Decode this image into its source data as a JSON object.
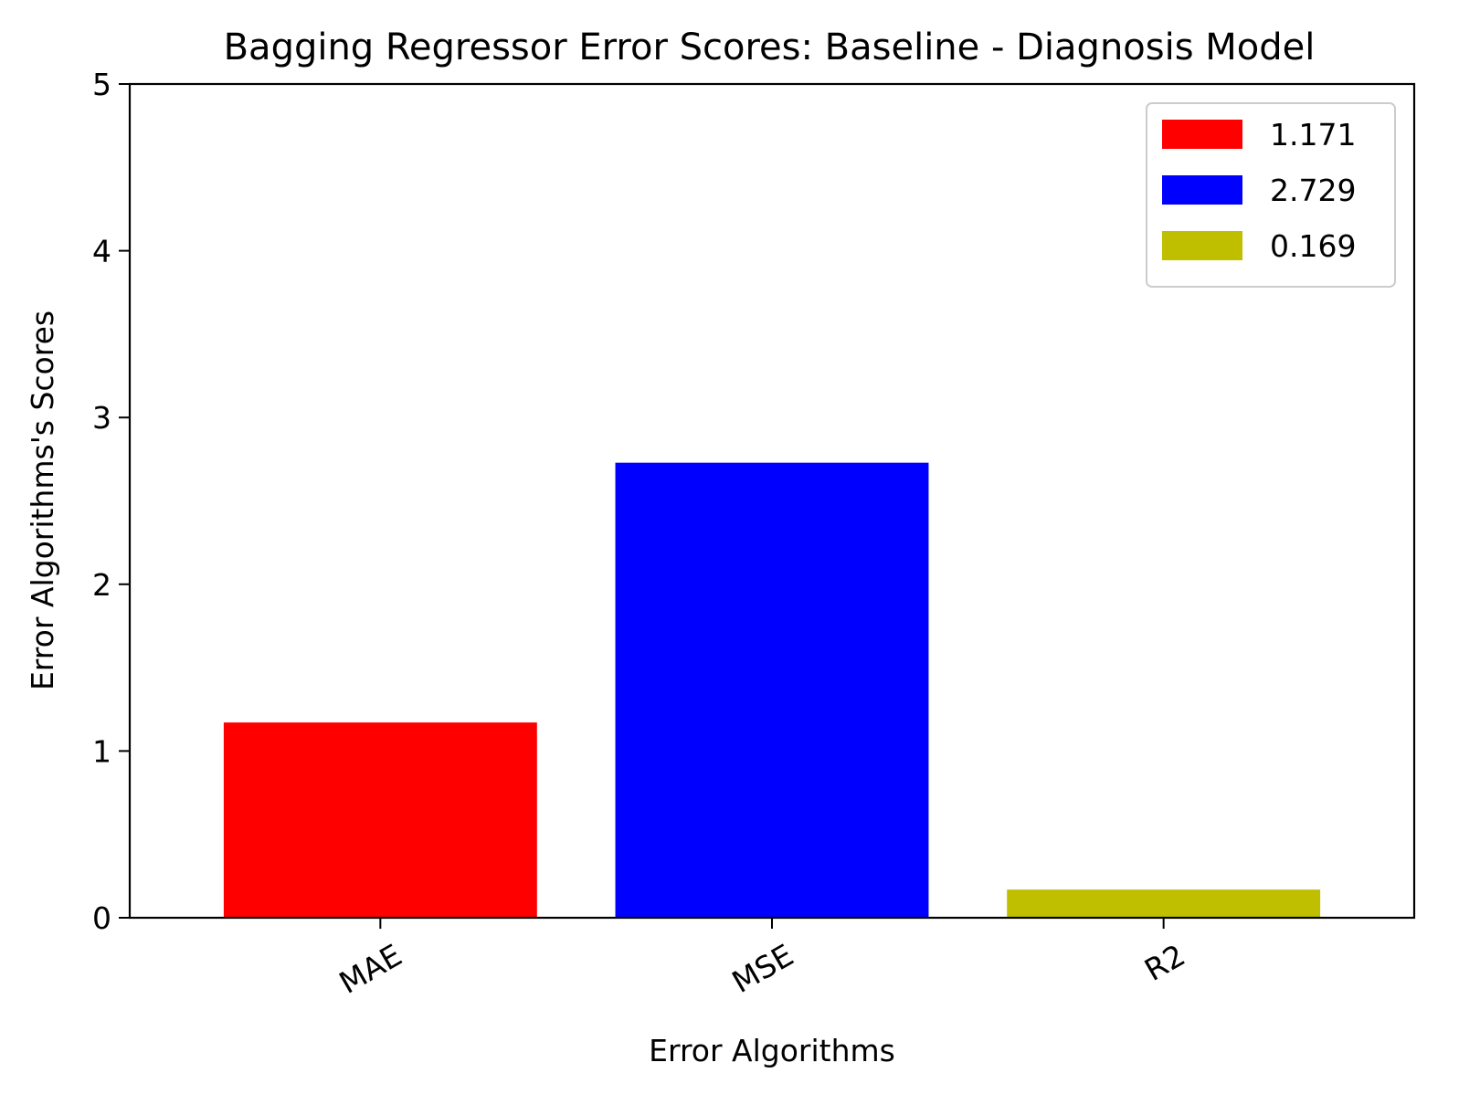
{
  "chart_data": {
    "type": "bar",
    "title": "Bagging Regressor Error Scores: Baseline - Diagnosis Model",
    "xlabel": "Error Algorithms",
    "ylabel": "Error Algorithms's Scores",
    "categories": [
      "MAE",
      "MSE",
      "R2"
    ],
    "values": [
      1.171,
      2.729,
      0.169
    ],
    "colors": [
      "#ff0000",
      "#0000ff",
      "#bfbf00"
    ],
    "ylim": [
      0,
      5
    ],
    "yticks": [
      0,
      1,
      2,
      3,
      4,
      5
    ],
    "grid": false,
    "legend": {
      "position": "top-right",
      "entries": [
        {
          "label": "1.171",
          "color": "#ff0000"
        },
        {
          "label": "2.729",
          "color": "#0000ff"
        },
        {
          "label": "0.169",
          "color": "#bfbf00"
        }
      ]
    }
  }
}
